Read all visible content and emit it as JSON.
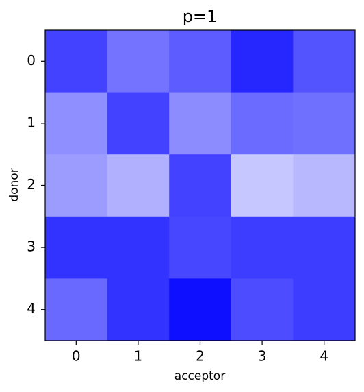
{
  "chart_data": {
    "type": "heatmap",
    "title": "p=1",
    "x_label": "acceptor",
    "y_label": "donor",
    "xlim": [
      -0.5,
      4.5
    ],
    "ylim": [
      4.5,
      -0.5
    ],
    "xticks": [
      0,
      1,
      2,
      3,
      4
    ],
    "yticks": [
      0,
      1,
      2,
      3,
      4
    ],
    "zlim": [
      0,
      1
    ],
    "cmap": [
      "#ffffff",
      "#0000ff"
    ],
    "values": [
      [
        0.74,
        0.55,
        0.64,
        0.85,
        0.67
      ],
      [
        0.44,
        0.74,
        0.45,
        0.58,
        0.56
      ],
      [
        0.39,
        0.31,
        0.74,
        0.22,
        0.28
      ],
      [
        0.8,
        0.8,
        0.72,
        0.76,
        0.76
      ],
      [
        0.59,
        0.8,
        0.94,
        0.7,
        0.76
      ]
    ]
  }
}
